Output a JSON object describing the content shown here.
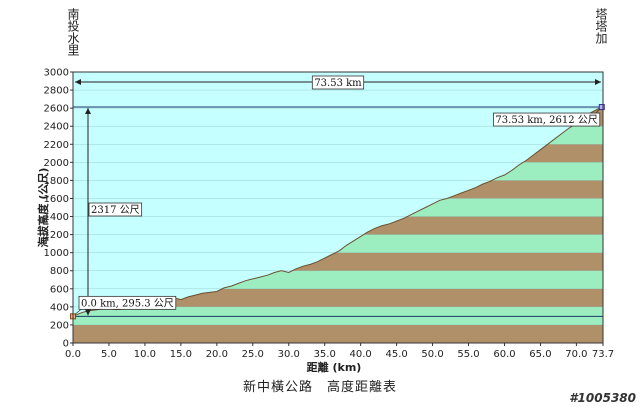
{
  "chart_data": {
    "type": "area",
    "title": "",
    "xlabel": "距離 (km)",
    "ylabel": "海拔高度 (公尺)",
    "xlim": [
      0,
      73.7
    ],
    "ylim": [
      0,
      3000
    ],
    "x_ticks": [
      "0.0",
      "5.0",
      "10.0",
      "15.0",
      "20.0",
      "25.0",
      "30.0",
      "35.0",
      "40.0",
      "45.0",
      "50.0",
      "55.0",
      "60.0",
      "65.0",
      "70.0",
      "73.7"
    ],
    "y_ticks": [
      "0",
      "200",
      "400",
      "600",
      "800",
      "1000",
      "1200",
      "1400",
      "1600",
      "1800",
      "2000",
      "2200",
      "2400",
      "2600",
      "2800",
      "3000"
    ],
    "band_height": 200,
    "band_colors": [
      "#b09068",
      "#9ceec0"
    ],
    "sky_color": "#c6ffff",
    "line_color": "#222222",
    "x": [
      0,
      1,
      2,
      3,
      4,
      5,
      6,
      7,
      8,
      9,
      10,
      11,
      12,
      13,
      14,
      15,
      16,
      17,
      18,
      19,
      20,
      21,
      22,
      23,
      24,
      25,
      26,
      27,
      28,
      29,
      30,
      31,
      32,
      33,
      34,
      35,
      36,
      37,
      38,
      39,
      40,
      41,
      42,
      43,
      44,
      45,
      46,
      47,
      48,
      49,
      50,
      51,
      52,
      53,
      54,
      55,
      56,
      57,
      58,
      59,
      60,
      61,
      62,
      63,
      64,
      65,
      66,
      67,
      68,
      69,
      70,
      71,
      72,
      73,
      73.53
    ],
    "y": [
      295,
      330,
      355,
      365,
      375,
      380,
      370,
      375,
      390,
      400,
      410,
      430,
      450,
      470,
      500,
      480,
      510,
      530,
      550,
      560,
      570,
      610,
      630,
      660,
      690,
      710,
      730,
      750,
      780,
      800,
      780,
      820,
      850,
      870,
      900,
      940,
      980,
      1020,
      1080,
      1130,
      1180,
      1230,
      1270,
      1300,
      1320,
      1350,
      1380,
      1420,
      1460,
      1500,
      1540,
      1580,
      1600,
      1630,
      1660,
      1690,
      1720,
      1760,
      1790,
      1830,
      1860,
      1910,
      1970,
      2020,
      2080,
      2140,
      2200,
      2260,
      2320,
      2380,
      2430,
      2490,
      2550,
      2590,
      2612
    ]
  },
  "annotations": {
    "distance_total": "73.53 km",
    "climb": "2317 公尺",
    "start_point": "0.0 km, 295.3 公尺",
    "end_point": "73.53 km, 2612 公尺"
  },
  "start_name": "南投水里",
  "end_name": "塔塔加",
  "caption": "新中橫公路　高度距離表",
  "watermark": "#1005380"
}
